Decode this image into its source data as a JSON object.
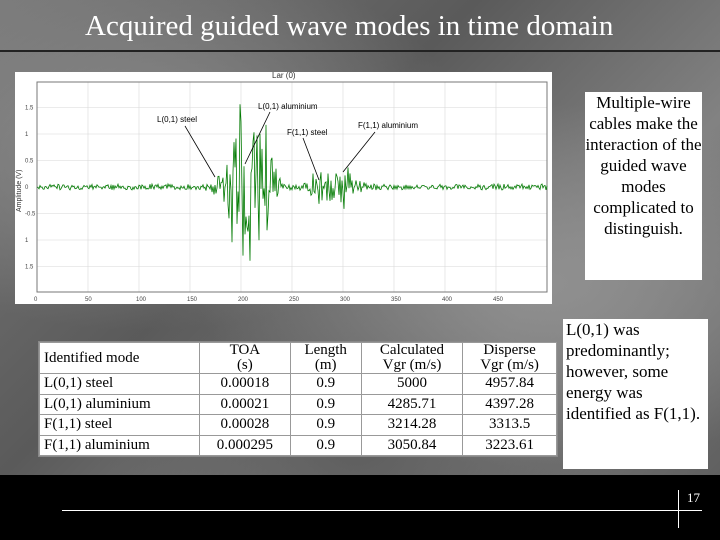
{
  "slide": {
    "title": "Acquired guided wave modes in time domain",
    "page_number": "17"
  },
  "notes": {
    "note1": "Multiple-wire cables make the interaction of the guided wave modes complicated to distinguish.",
    "note2": "L(0,1) was predominantly; however, some energy was identified as F(1,1)."
  },
  "plot": {
    "header_label": "Lar (0)",
    "ylabel": "Amplitude (V)",
    "yticks": [
      "1.5",
      "1",
      "0.5",
      "0",
      "-0.5",
      "1",
      "1.5"
    ],
    "xticks": [
      "0",
      "50",
      "100",
      "150",
      "200",
      "250",
      "300",
      "350",
      "400",
      "450"
    ],
    "annotations": {
      "l01_steel": "L(0,1) steel",
      "l01_aluminium": "L(0,1) aluminium",
      "f11_steel": "F(1,1) steel",
      "f11_aluminium": "F(1,1) aluminium"
    },
    "colors": {
      "signal": "#007a00",
      "grid": "#d8d8d8"
    }
  },
  "table": {
    "headers": [
      [
        "Identified mode",
        ""
      ],
      [
        "TOA",
        "(s)"
      ],
      [
        "Length",
        "(m)"
      ],
      [
        "Calculated",
        "Vgr (m/s)"
      ],
      [
        "Disperse",
        "Vgr (m/s)"
      ]
    ],
    "rows": [
      [
        "L(0,1) steel",
        "0.00018",
        "0.9",
        "5000",
        "4957.84"
      ],
      [
        "L(0,1) aluminium",
        "0.00021",
        "0.9",
        "4285.71",
        "4397.28"
      ],
      [
        "F(1,1) steel",
        "0.00028",
        "0.9",
        "3214.28",
        "3313.5"
      ],
      [
        "F(1,1) aluminium",
        "0.000295",
        "0.9",
        "3050.84",
        "3223.61"
      ]
    ]
  }
}
